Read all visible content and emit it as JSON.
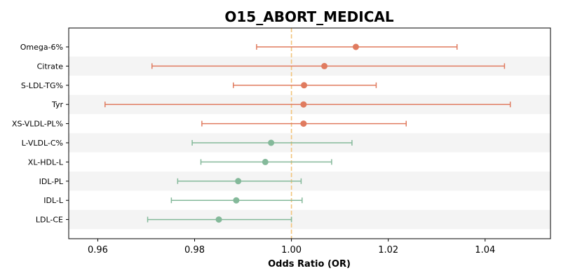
{
  "chart_data": {
    "type": "forest",
    "title": "O15_ABORT_MEDICAL",
    "xlabel": "Odds Ratio (OR)",
    "ylabel": "",
    "xlim": [
      0.954,
      1.0535
    ],
    "xticks": [
      0.96,
      0.98,
      1.0,
      1.02,
      1.04
    ],
    "xtick_labels": [
      "0.96",
      "0.98",
      "1.00",
      "1.02",
      "1.04"
    ],
    "reference_line": 1.0,
    "grid": false,
    "row_shading": "alternating",
    "colors": {
      "positive": "#E07B5F",
      "negative": "#84B99A",
      "reference": "#F2C57C",
      "band": "#F4F4F4"
    },
    "rows": [
      {
        "label": "Omega-6%",
        "or": 1.0133,
        "lo": 0.9928,
        "hi": 1.0342,
        "group": "positive"
      },
      {
        "label": "Citrate",
        "or": 1.0068,
        "lo": 0.9712,
        "hi": 1.044,
        "group": "positive"
      },
      {
        "label": "S-LDL-TG%",
        "or": 1.0026,
        "lo": 0.988,
        "hi": 1.0175,
        "group": "positive"
      },
      {
        "label": "Tyr",
        "or": 1.0025,
        "lo": 0.9615,
        "hi": 1.0452,
        "group": "positive"
      },
      {
        "label": "XS-VLDL-PL%",
        "or": 1.0025,
        "lo": 0.9815,
        "hi": 1.0237,
        "group": "positive"
      },
      {
        "label": "L-VLDL-C%",
        "or": 0.9958,
        "lo": 0.9795,
        "hi": 1.0125,
        "group": "negative"
      },
      {
        "label": "XL-HDL-L",
        "or": 0.9946,
        "lo": 0.9813,
        "hi": 1.0083,
        "group": "negative"
      },
      {
        "label": "IDL-PL",
        "or": 0.989,
        "lo": 0.9765,
        "hi": 1.002,
        "group": "negative"
      },
      {
        "label": "IDL-L",
        "or": 0.9886,
        "lo": 0.9752,
        "hi": 1.0022,
        "group": "negative"
      },
      {
        "label": "LDL-CE",
        "or": 0.985,
        "lo": 0.9703,
        "hi": 1.0,
        "group": "negative"
      }
    ]
  }
}
